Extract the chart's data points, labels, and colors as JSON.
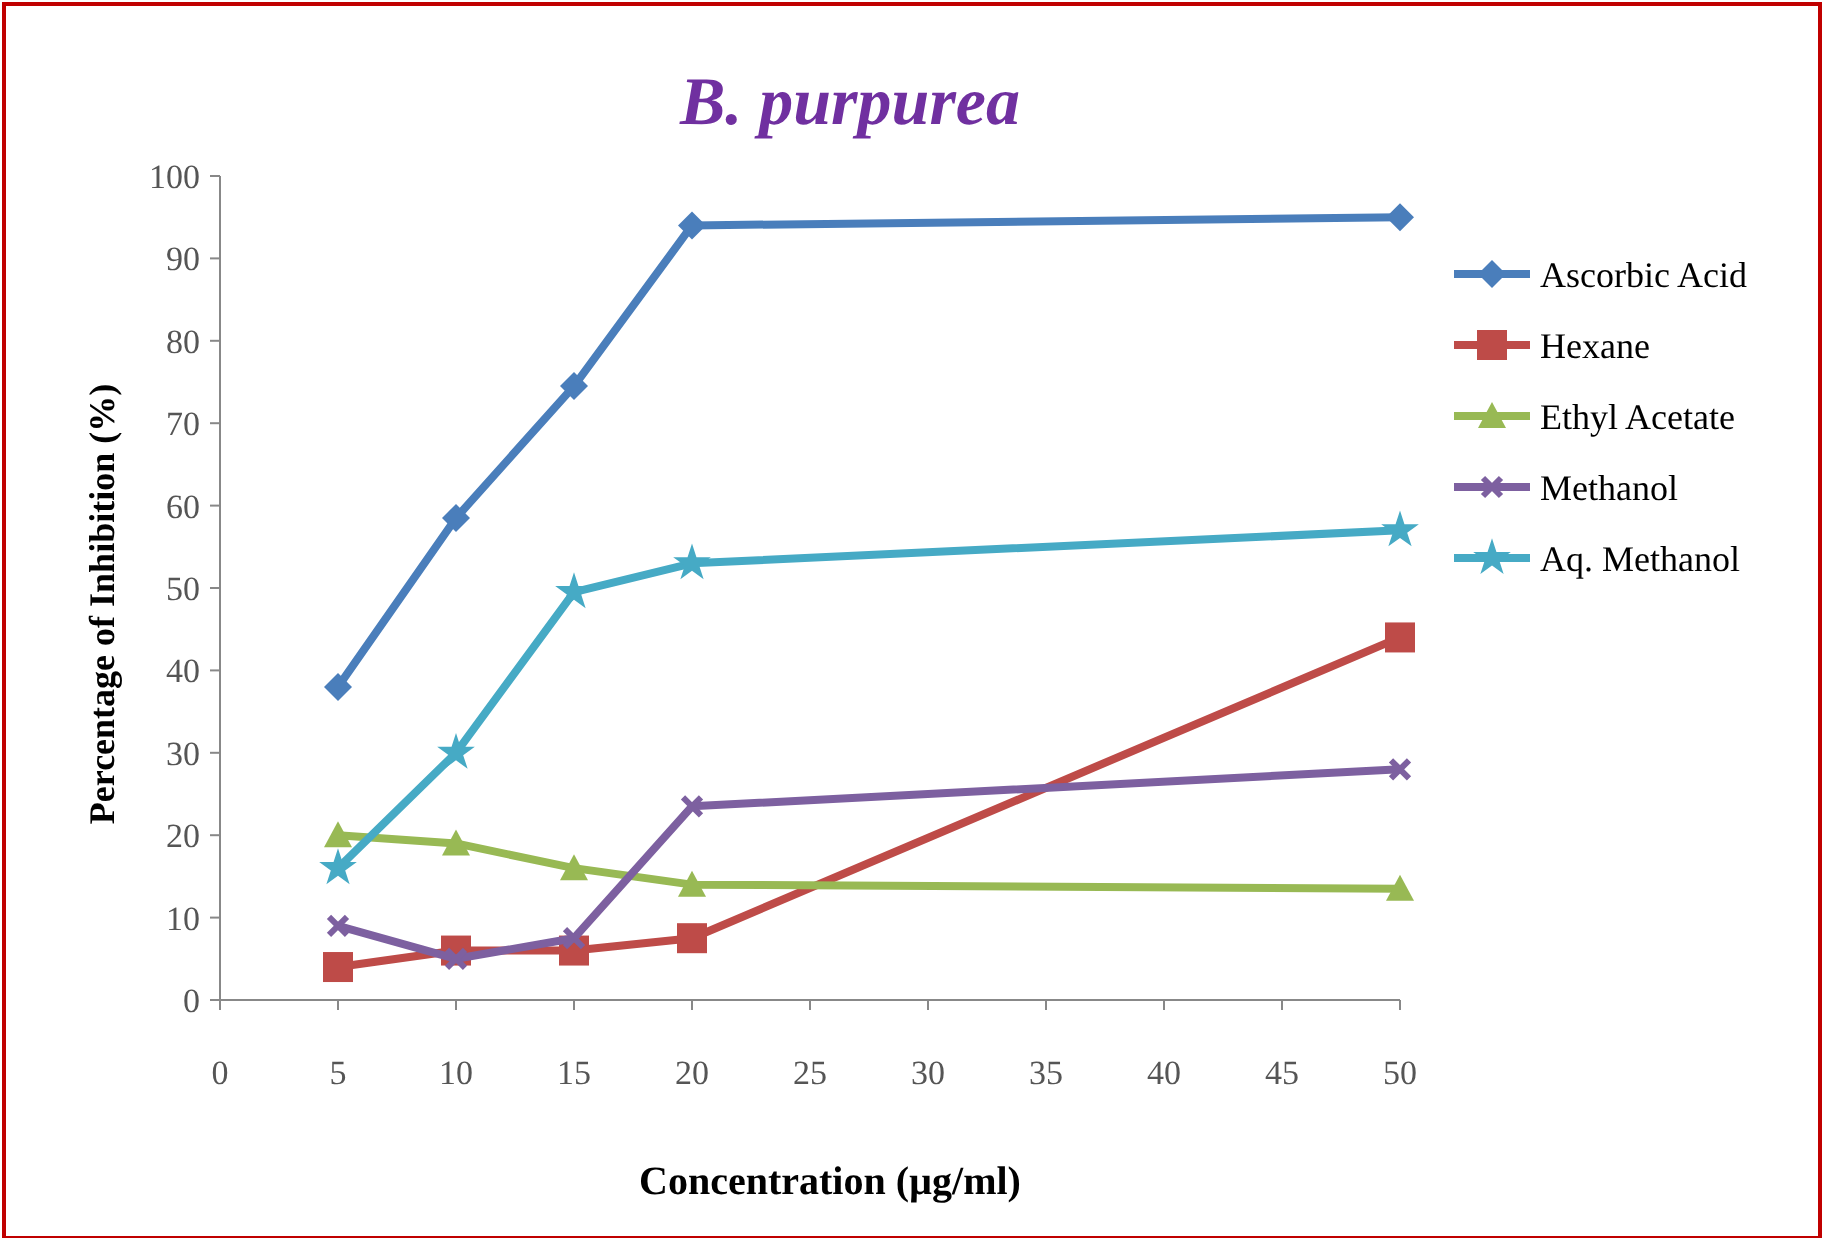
{
  "chart_data": {
    "type": "line",
    "title": "B. purpurea",
    "xlabel": "Concentration (µg/ml)",
    "ylabel": "Percentage of Inhibition  (%)",
    "x": [
      5,
      10,
      15,
      20,
      50
    ],
    "xlim": [
      0,
      50
    ],
    "xticks": [
      0,
      5,
      10,
      15,
      20,
      25,
      30,
      35,
      40,
      45,
      50
    ],
    "ylim": [
      0,
      100
    ],
    "yticks": [
      0,
      10,
      20,
      30,
      40,
      50,
      60,
      70,
      80,
      90,
      100
    ],
    "grid": false,
    "legend": "right",
    "series": [
      {
        "name": "Ascorbic Acid",
        "color": "#4a7ebb",
        "marker": "diamond",
        "values": [
          38,
          58.5,
          74.5,
          94,
          95
        ]
      },
      {
        "name": "Hexane",
        "color": "#be4b48",
        "marker": "square",
        "values": [
          4,
          6,
          6,
          7.5,
          44
        ]
      },
      {
        "name": "Ethyl Acetate",
        "color": "#98b954",
        "marker": "triangle",
        "values": [
          20,
          19,
          16,
          14,
          13.5
        ]
      },
      {
        "name": "Methanol",
        "color": "#7d60a0",
        "marker": "cross",
        "values": [
          9,
          5,
          7.5,
          23.5,
          28
        ]
      },
      {
        "name": "Aq. Methanol",
        "color": "#46aac5",
        "marker": "star",
        "values": [
          16,
          30,
          49.5,
          53,
          57
        ]
      }
    ]
  }
}
